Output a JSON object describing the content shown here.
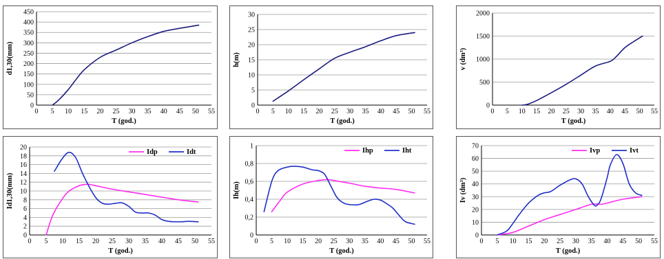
{
  "colors": {
    "blue": "#1f2fc8",
    "magenta": "#ff2cf0",
    "navy": "#1a1a80"
  },
  "chart_data": [
    {
      "type": "line",
      "xlabel": "T (god.)",
      "ylabel": "d1,30(mm)",
      "xlim": [
        0,
        55
      ],
      "ylim": [
        0,
        450
      ],
      "xticks": [
        0,
        5,
        10,
        15,
        20,
        25,
        30,
        35,
        40,
        45,
        50,
        55
      ],
      "yticks": [
        0,
        50,
        100,
        150,
        200,
        250,
        300,
        350,
        400,
        450
      ],
      "xtick_labels": [
        "0",
        "5",
        "10",
        "15",
        "20",
        "25",
        "30",
        "35",
        "40",
        "45",
        "50",
        "55"
      ],
      "ytick_labels": [
        "0",
        "50",
        "100",
        "150",
        "200",
        "250",
        "300",
        "350",
        "400",
        "450"
      ],
      "legend": false,
      "series": [
        {
          "color": "#1a1a80",
          "x": [
            5,
            7,
            10,
            12,
            15,
            20,
            25,
            30,
            35,
            40,
            45,
            51
          ],
          "y": [
            0,
            25,
            75,
            115,
            170,
            230,
            265,
            300,
            330,
            355,
            370,
            385
          ]
        }
      ]
    },
    {
      "type": "line",
      "xlabel": "T (god.)",
      "ylabel": "h(m)",
      "xlim": [
        0,
        55
      ],
      "ylim": [
        0,
        30
      ],
      "xticks": [
        0,
        5,
        10,
        15,
        20,
        25,
        30,
        35,
        40,
        45,
        50,
        55
      ],
      "yticks": [
        0,
        5,
        10,
        15,
        20,
        25,
        30
      ],
      "xtick_labels": [
        "0",
        "5",
        "10",
        "15",
        "20",
        "25",
        "30",
        "35",
        "40",
        "45",
        "50",
        "55"
      ],
      "ytick_labels": [
        "0",
        "5",
        "10",
        "15",
        "20",
        "25",
        "30"
      ],
      "legend": false,
      "series": [
        {
          "color": "#1a1a80",
          "x": [
            5,
            10,
            15,
            20,
            25,
            30,
            35,
            40,
            45,
            51
          ],
          "y": [
            1.3,
            4.7,
            8.4,
            12,
            15.5,
            17.5,
            19.3,
            21.3,
            23,
            24
          ]
        }
      ]
    },
    {
      "type": "line",
      "xlabel": "T (god.)",
      "ylabel": "v (dm³)",
      "xlim": [
        0,
        55
      ],
      "ylim": [
        0,
        2000
      ],
      "xticks": [
        0,
        5,
        10,
        15,
        20,
        25,
        30,
        35,
        40,
        45,
        50,
        55
      ],
      "yticks": [
        0,
        500,
        1000,
        1500,
        2000
      ],
      "xtick_labels": [
        "0",
        "5",
        "10",
        "15",
        "20",
        "25",
        "30",
        "35",
        "40",
        "45",
        "50",
        "55"
      ],
      "ytick_labels": [
        "0",
        "500",
        "1000",
        "1500",
        "2000"
      ],
      "legend": false,
      "series": [
        {
          "color": "#1a1a80",
          "x": [
            10,
            12,
            15,
            20,
            25,
            30,
            35,
            40,
            42,
            45,
            48,
            51
          ],
          "y": [
            0,
            20,
            100,
            270,
            450,
            650,
            850,
            950,
            1050,
            1250,
            1380,
            1500
          ]
        }
      ]
    },
    {
      "type": "line",
      "xlabel": "T (god.)",
      "ylabel": "Id1,30(mm)",
      "xlim": [
        0,
        55
      ],
      "ylim": [
        0,
        20
      ],
      "xticks": [
        0,
        5,
        10,
        15,
        20,
        25,
        30,
        35,
        40,
        45,
        50,
        55
      ],
      "yticks": [
        0,
        2,
        4,
        6,
        8,
        10,
        12,
        14,
        16,
        18,
        20
      ],
      "xtick_labels": [
        "0",
        "5",
        "10",
        "15",
        "20",
        "25",
        "30",
        "35",
        "40",
        "45",
        "50",
        "55"
      ],
      "ytick_labels": [
        "0",
        "2",
        "4",
        "6",
        "8",
        "10",
        "12",
        "14",
        "16",
        "18",
        "20"
      ],
      "legend": true,
      "series": [
        {
          "name": "Idp",
          "color": "#ff2cf0",
          "x": [
            5,
            7,
            10,
            12,
            15,
            17,
            18,
            20,
            25,
            30,
            35,
            40,
            45,
            51
          ],
          "y": [
            0,
            4.5,
            8.3,
            10,
            11.2,
            11.5,
            11.5,
            11.2,
            10.4,
            9.8,
            9.2,
            8.6,
            8,
            7.5
          ]
        },
        {
          "name": "Idt",
          "color": "#1f2fc8",
          "x": [
            7.5,
            10,
            12,
            14,
            16,
            18,
            20,
            22,
            24,
            26,
            28,
            30,
            32,
            34,
            36,
            38,
            40,
            42,
            44,
            46,
            48,
            51
          ],
          "y": [
            14.5,
            17.5,
            18.8,
            17.5,
            14,
            11,
            8.5,
            7.2,
            7,
            7.2,
            7.3,
            6.5,
            5.2,
            5,
            5,
            4.5,
            3.5,
            3.1,
            3,
            3,
            3.1,
            3
          ]
        }
      ]
    },
    {
      "type": "line",
      "xlabel": "T (god.)",
      "ylabel": "Ih(m)",
      "xlim": [
        0,
        55
      ],
      "ylim": [
        0,
        1
      ],
      "xticks": [
        0,
        5,
        10,
        15,
        20,
        25,
        30,
        35,
        40,
        45,
        50,
        55
      ],
      "yticks": [
        0,
        0.2,
        0.4,
        0.6,
        0.8,
        1
      ],
      "xtick_labels": [
        "0",
        "5",
        "10",
        "15",
        "20",
        "25",
        "30",
        "35",
        "40",
        "45",
        "50",
        "55"
      ],
      "ytick_labels": [
        "0",
        "0,2",
        "0,4",
        "0,6",
        "0,8",
        "1"
      ],
      "legend": true,
      "series": [
        {
          "name": "Ihp",
          "color": "#ff2cf0",
          "x": [
            5,
            8,
            10,
            15,
            20,
            23,
            25,
            30,
            35,
            40,
            45,
            51
          ],
          "y": [
            0.26,
            0.4,
            0.48,
            0.57,
            0.61,
            0.62,
            0.61,
            0.58,
            0.545,
            0.525,
            0.51,
            0.47
          ]
        },
        {
          "name": "Iht",
          "color": "#1f2fc8",
          "x": [
            2.5,
            5,
            7,
            10,
            12,
            15,
            18,
            20,
            22,
            24,
            26,
            28,
            30,
            33,
            36,
            38,
            40,
            42,
            44,
            46,
            48,
            51
          ],
          "y": [
            0.26,
            0.6,
            0.72,
            0.76,
            0.77,
            0.76,
            0.73,
            0.72,
            0.68,
            0.55,
            0.42,
            0.36,
            0.34,
            0.34,
            0.38,
            0.4,
            0.39,
            0.35,
            0.3,
            0.22,
            0.15,
            0.12
          ]
        }
      ]
    },
    {
      "type": "line",
      "xlabel": "T (god.)",
      "ylabel": "Iv (dm³)",
      "xlim": [
        0,
        55
      ],
      "ylim": [
        0,
        70
      ],
      "xticks": [
        0,
        5,
        10,
        15,
        20,
        25,
        30,
        35,
        40,
        45,
        50,
        55
      ],
      "yticks": [
        0,
        10,
        20,
        30,
        40,
        50,
        60,
        70
      ],
      "xtick_labels": [
        "0",
        "5",
        "10",
        "15",
        "20",
        "25",
        "30",
        "35",
        "40",
        "45",
        "50",
        "55"
      ],
      "ytick_labels": [
        "0",
        "10",
        "20",
        "30",
        "40",
        "50",
        "60",
        "70"
      ],
      "legend": true,
      "series": [
        {
          "name": "Ivp",
          "color": "#ff2cf0",
          "x": [
            5,
            10,
            15,
            20,
            25,
            30,
            35,
            38,
            40,
            45,
            51
          ],
          "y": [
            0,
            2,
            7,
            12,
            16,
            20,
            24,
            24,
            25,
            28,
            30
          ]
        },
        {
          "name": "Ivt",
          "color": "#1f2fc8",
          "x": [
            5,
            8,
            10,
            12,
            15,
            18,
            20,
            22,
            25,
            28,
            30,
            32,
            34,
            36,
            37,
            38,
            40,
            41,
            43,
            45,
            47,
            49,
            51
          ],
          "y": [
            0,
            3,
            9,
            16,
            25,
            31,
            33,
            34,
            39,
            43,
            44,
            40,
            30,
            23,
            24,
            28,
            45,
            55,
            63,
            56,
            40,
            33,
            31
          ]
        }
      ]
    }
  ]
}
